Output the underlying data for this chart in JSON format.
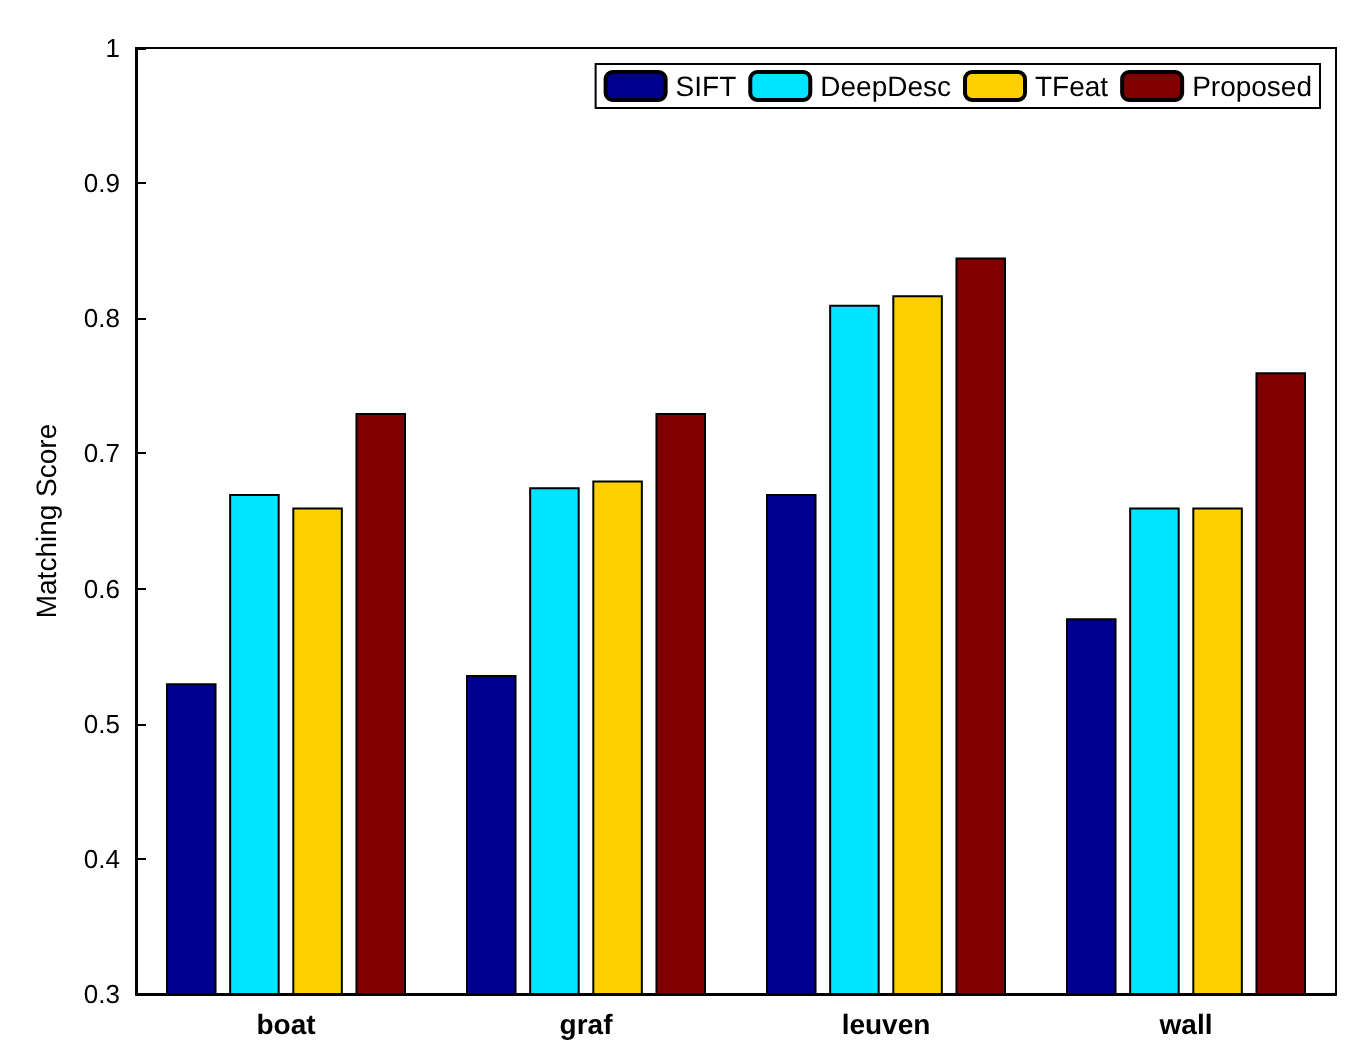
{
  "chart_data": {
    "type": "bar",
    "ylabel": "Matching Score",
    "categories": [
      "boat",
      "graf",
      "leuven",
      "wall"
    ],
    "series": [
      {
        "name": "SIFT",
        "color": "#00008f",
        "values": [
          0.53,
          0.536,
          0.67,
          0.578
        ]
      },
      {
        "name": "DeepDesc",
        "color": "#00e5ff",
        "values": [
          0.67,
          0.675,
          0.81,
          0.66
        ]
      },
      {
        "name": "TFeat",
        "color": "#ffcf00",
        "values": [
          0.66,
          0.68,
          0.817,
          0.66
        ]
      },
      {
        "name": "Proposed",
        "color": "#800000",
        "values": [
          0.73,
          0.73,
          0.845,
          0.76
        ]
      }
    ],
    "ylim": [
      0.3,
      1
    ],
    "yticks": [
      0.3,
      0.4,
      0.5,
      0.6,
      0.7,
      0.8,
      0.9,
      1
    ],
    "grid": false,
    "legend": "top right"
  }
}
